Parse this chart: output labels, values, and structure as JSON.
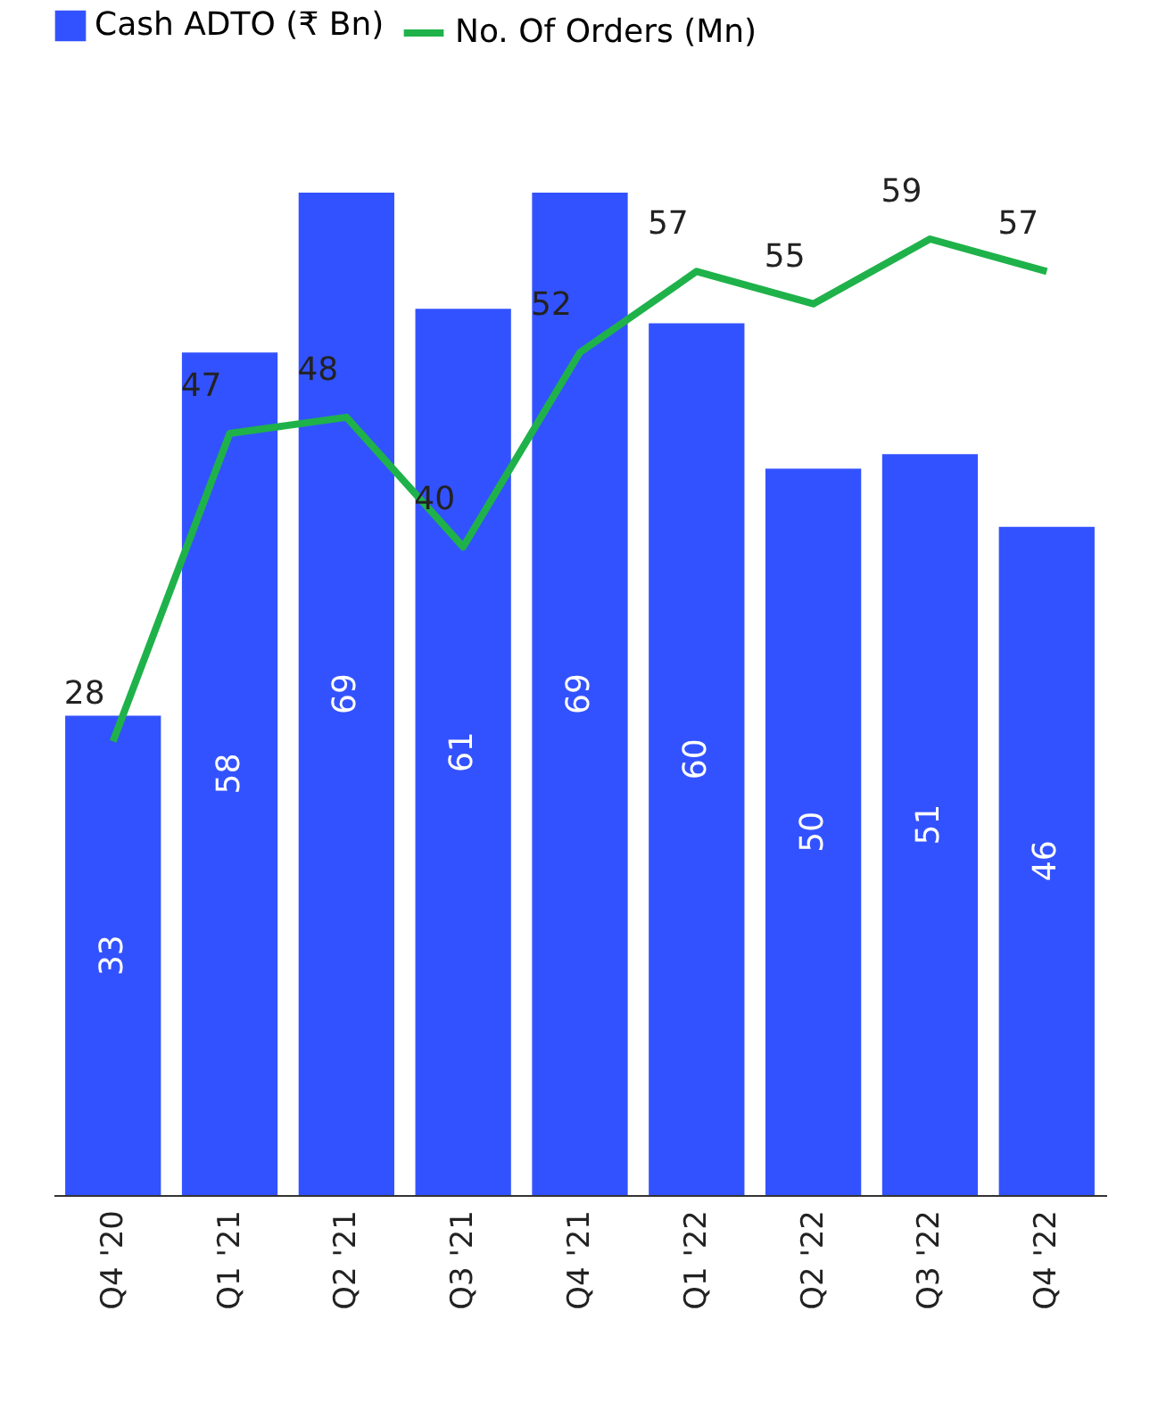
{
  "chart_data": {
    "type": "bar",
    "categories": [
      "Q4 '20",
      "Q1 '21",
      "Q2 '21",
      "Q3 '21",
      "Q4 '21",
      "Q1 '22",
      "Q2 '22",
      "Q3 '22",
      "Q4 '22"
    ],
    "series": [
      {
        "name": "Cash ADTO (₹ Bn)",
        "color": "#3352ff",
        "values": [
          33,
          58,
          69,
          61,
          69,
          60,
          50,
          51,
          46
        ]
      },
      {
        "name": "No. Of Orders (Mn)",
        "type": "line",
        "axis": "y2",
        "color": "#1fb24a",
        "values": [
          28,
          47,
          48,
          40,
          52,
          57,
          55,
          59,
          57
        ]
      }
    ],
    "data_labels": true,
    "legend": "top",
    "tick_labels": "x",
    "marker": "none"
  }
}
